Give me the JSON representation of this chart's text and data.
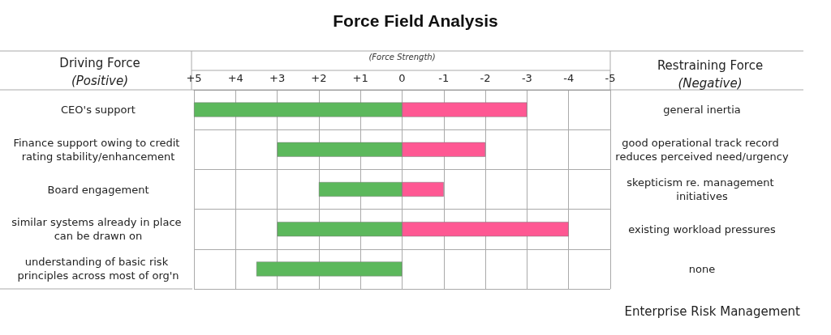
{
  "chart_data": {
    "type": "bar",
    "orientation": "horizontal",
    "title": "Force Field Analysis",
    "xlabel": "(Force Strength)",
    "ylabel": "Driving Force\n(Positive)",
    "y2label": "Restraining Force\n(Negative)",
    "categories": [
      "CEO's support",
      "Finance support owing to credit rating stability/enhancement",
      "Board engagement",
      "similar systems already in place can be drawn on",
      "understanding of basic risk principles across most of org'n"
    ],
    "y2_categories": [
      "general inertia",
      "good operational track record reduces perceived need/urgency",
      "skepticism re. management initiatives",
      "existing workload pressures",
      "none"
    ],
    "series": [
      {
        "color": "#5cb85c",
        "values": [
          5,
          3,
          2,
          3,
          3.5
        ]
      },
      {
        "color": "#fe5893",
        "values": [
          -3,
          -2,
          -1,
          -4,
          null
        ]
      }
    ],
    "xlim": [
      5,
      -5
    ],
    "xticks": [
      {
        "value": 5,
        "label": "+5"
      },
      {
        "value": 4,
        "label": "+4"
      },
      {
        "value": 3,
        "label": "+3"
      },
      {
        "value": 2,
        "label": "+2"
      },
      {
        "value": 1,
        "label": "+1"
      },
      0,
      -1,
      -2,
      -3,
      -4,
      -5
    ],
    "grid": true,
    "stacked": true,
    "annotations": [
      "Enterprise Risk Management"
    ]
  }
}
